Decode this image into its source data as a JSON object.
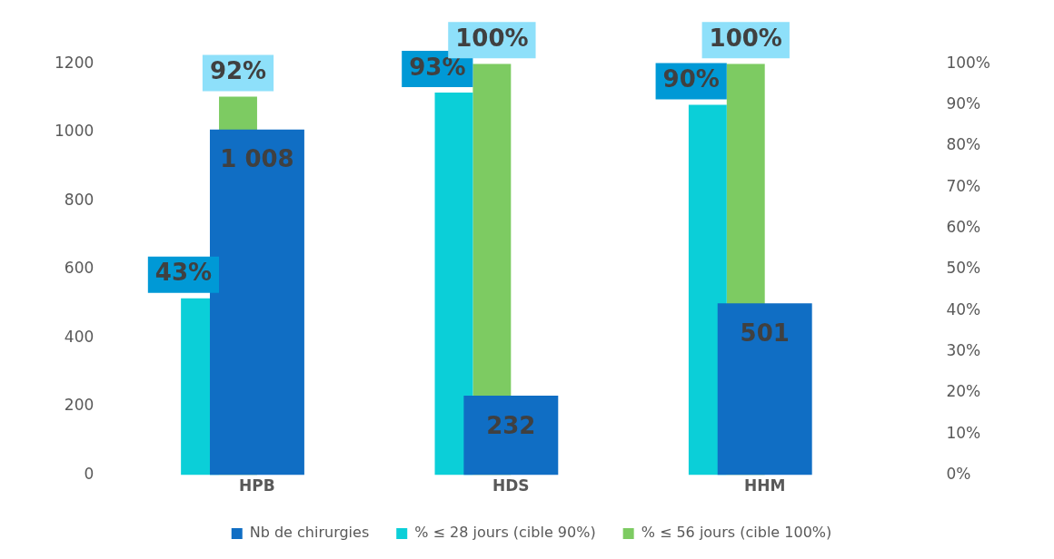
{
  "chart_data": {
    "type": "bar",
    "categories": [
      "HPB",
      "HDS",
      "HHM"
    ],
    "series": [
      {
        "name": "% ≤ 28 jours (cible 90%)",
        "color": "#0bcfd8",
        "axis": "y2",
        "values": [
          43,
          93,
          90
        ],
        "value_labels": [
          "43%",
          "93%",
          "90%"
        ]
      },
      {
        "name": "% ≤ 56 jours (cible 100%)",
        "color": "#7dcb62",
        "axis": "y2",
        "values": [
          92,
          100,
          100
        ],
        "value_labels": [
          "92%",
          "100%",
          "100%"
        ]
      },
      {
        "name": "Nb de chirurgies",
        "color": "#106ec4",
        "axis": "y",
        "values": [
          1008,
          232,
          501
        ],
        "value_labels": [
          "1 008",
          "232",
          "501"
        ]
      }
    ],
    "ylim": [
      0,
      1200
    ],
    "yticks": [
      0,
      200,
      400,
      600,
      800,
      1000,
      1200
    ],
    "y2lim": [
      0,
      100
    ],
    "y2ticks": [
      {
        "value": 0,
        "label": "0%"
      },
      {
        "value": 10,
        "label": "10%"
      },
      {
        "value": 20,
        "label": "20%"
      },
      {
        "value": 30,
        "label": "30%"
      },
      {
        "value": 40,
        "label": "40%"
      },
      {
        "value": 50,
        "label": "50%"
      },
      {
        "value": 60,
        "label": "60%"
      },
      {
        "value": 70,
        "label": "70%"
      },
      {
        "value": 80,
        "label": "80%"
      },
      {
        "value": 90,
        "label": "90%"
      },
      {
        "value": 100,
        "label": "100%"
      }
    ],
    "grid": false,
    "legend": "bottom"
  }
}
